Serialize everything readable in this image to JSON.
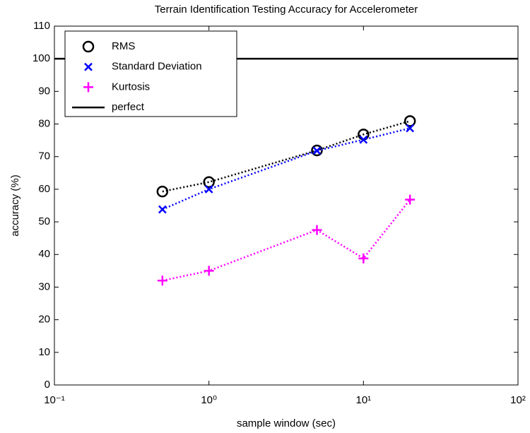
{
  "chart_data": {
    "type": "line",
    "title": "Terrain Identification Testing Accuracy for Accelerometer",
    "xlabel": "sample window (sec)",
    "ylabel": "accuracy (%)",
    "xscale": "log",
    "x": [
      0.5,
      1,
      5,
      10,
      20
    ],
    "series": [
      {
        "name": "RMS",
        "color": "#000000",
        "marker": "o",
        "linestyle": "dotted",
        "values": [
          59.3,
          62.2,
          71.9,
          76.8,
          80.9
        ]
      },
      {
        "name": "Standard Deviation",
        "color": "#0000ff",
        "marker": "x",
        "linestyle": "dotted",
        "values": [
          53.8,
          60,
          71.8,
          75.2,
          78.7
        ]
      },
      {
        "name": "Kurtosis",
        "color": "#ff00ff",
        "marker": "+",
        "linestyle": "dotted",
        "values": [
          32,
          35,
          47.5,
          38.8,
          56.8
        ]
      },
      {
        "name": "perfect",
        "color": "#000000",
        "linestyle": "solid",
        "x": [
          0.1,
          100
        ],
        "values": [
          100,
          100
        ]
      }
    ],
    "xlim": [
      0.1,
      100
    ],
    "xticks": [
      {
        "value": 0.1,
        "label": "10⁻¹"
      },
      {
        "value": 1,
        "label": "10⁰"
      },
      {
        "value": 10,
        "label": "10¹"
      },
      {
        "value": 100,
        "label": "10²"
      }
    ],
    "ylim": [
      0,
      110
    ],
    "yticks": [
      0,
      10,
      20,
      30,
      40,
      50,
      60,
      70,
      80,
      90,
      100,
      110
    ],
    "grid": false,
    "legend": "upper left"
  }
}
